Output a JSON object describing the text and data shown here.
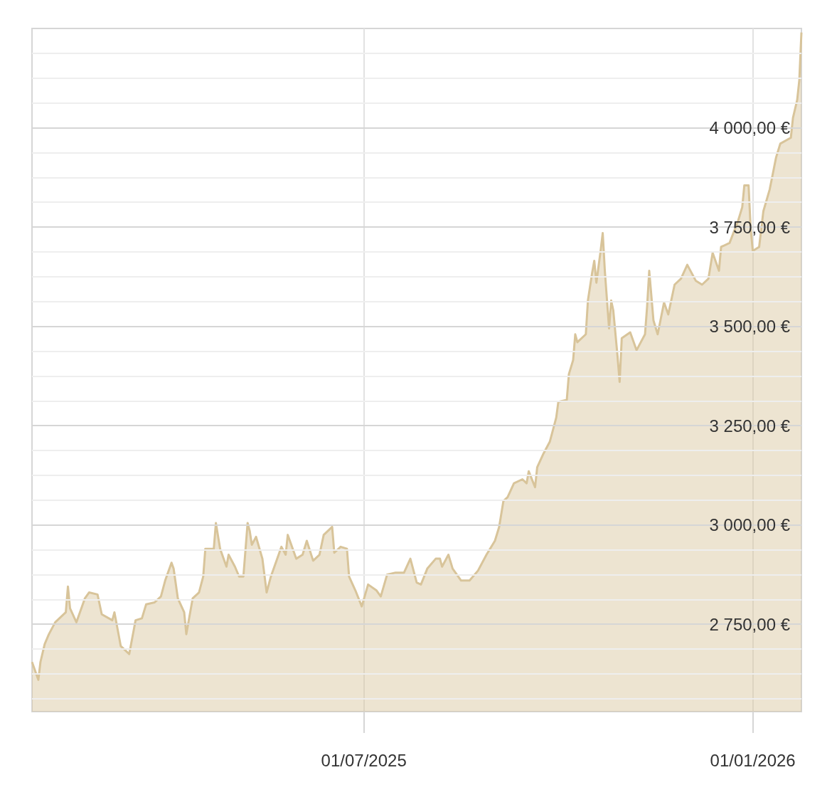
{
  "chart_data": {
    "type": "area",
    "color": "#d8c49a",
    "x": [
      "2025-01-25",
      "2025-01-28",
      "2025-01-29",
      "2025-01-31",
      "2025-02-02",
      "2025-02-05",
      "2025-02-10",
      "2025-02-11",
      "2025-02-12",
      "2025-02-15",
      "2025-02-19",
      "2025-02-21",
      "2025-02-25",
      "2025-02-27",
      "2025-03-04",
      "2025-03-05",
      "2025-03-08",
      "2025-03-12",
      "2025-03-15",
      "2025-03-18",
      "2025-03-20",
      "2025-03-24",
      "2025-03-27",
      "2025-03-29",
      "2025-04-01",
      "2025-04-02",
      "2025-04-04",
      "2025-04-07",
      "2025-04-08",
      "2025-04-09",
      "2025-04-11",
      "2025-04-14",
      "2025-04-16",
      "2025-04-17",
      "2025-04-21",
      "2025-04-22",
      "2025-04-24",
      "2025-04-27",
      "2025-04-28",
      "2025-05-01",
      "2025-05-03",
      "2025-05-05",
      "2025-05-07",
      "2025-05-08",
      "2025-05-09",
      "2025-05-11",
      "2025-05-14",
      "2025-05-16",
      "2025-05-18",
      "2025-05-22",
      "2025-05-23",
      "2025-05-25",
      "2025-05-26",
      "2025-05-30",
      "2025-06-02",
      "2025-06-04",
      "2025-06-07",
      "2025-06-10",
      "2025-06-12",
      "2025-06-16",
      "2025-06-17",
      "2025-06-20",
      "2025-06-23",
      "2025-06-24",
      "2025-06-27",
      "2025-06-30",
      "2025-07-03",
      "2025-07-07",
      "2025-07-09",
      "2025-07-12",
      "2025-07-16",
      "2025-07-20",
      "2025-07-23",
      "2025-07-26",
      "2025-07-28",
      "2025-07-31",
      "2025-08-04",
      "2025-08-06",
      "2025-08-07",
      "2025-08-10",
      "2025-08-12",
      "2025-08-16",
      "2025-08-20",
      "2025-08-24",
      "2025-08-28",
      "2025-09-01",
      "2025-09-03",
      "2025-09-05",
      "2025-09-07",
      "2025-09-10",
      "2025-09-14",
      "2025-09-16",
      "2025-09-17",
      "2025-09-20",
      "2025-09-21",
      "2025-09-24",
      "2025-09-27",
      "2025-09-30",
      "2025-10-01",
      "2025-10-05",
      "2025-10-06",
      "2025-10-08",
      "2025-10-09",
      "2025-10-10",
      "2025-10-14",
      "2025-10-15",
      "2025-10-17",
      "2025-10-18",
      "2025-10-19",
      "2025-10-21",
      "2025-10-22",
      "2025-10-23",
      "2025-10-25",
      "2025-10-26",
      "2025-10-27",
      "2025-10-29",
      "2025-10-30",
      "2025-10-31",
      "2025-11-04",
      "2025-11-07",
      "2025-11-11",
      "2025-11-12",
      "2025-11-13",
      "2025-11-15",
      "2025-11-17",
      "2025-11-20",
      "2025-11-22",
      "2025-11-25",
      "2025-11-28",
      "2025-12-01",
      "2025-12-05",
      "2025-12-08",
      "2025-12-11",
      "2025-12-13",
      "2025-12-16",
      "2025-12-17",
      "2025-12-21",
      "2025-12-25",
      "2025-12-27",
      "2025-12-28",
      "2025-12-30",
      "2025-12-31",
      "2026-01-01",
      "2026-01-04",
      "2026-01-06",
      "2026-01-09",
      "2026-01-12",
      "2026-01-14",
      "2026-01-19",
      "2026-01-20",
      "2026-01-22",
      "2026-01-23",
      "2026-01-24"
    ],
    "values": [
      2655,
      2610,
      2655,
      2700,
      2725,
      2755,
      2780,
      2845,
      2790,
      2755,
      2815,
      2830,
      2825,
      2775,
      2760,
      2780,
      2695,
      2675,
      2760,
      2765,
      2800,
      2805,
      2820,
      2860,
      2905,
      2890,
      2815,
      2780,
      2725,
      2755,
      2815,
      2830,
      2870,
      2940,
      2940,
      3005,
      2940,
      2895,
      2925,
      2895,
      2870,
      2870,
      3005,
      2985,
      2950,
      2970,
      2915,
      2830,
      2870,
      2930,
      2945,
      2925,
      2975,
      2915,
      2925,
      2960,
      2910,
      2925,
      2975,
      2995,
      2930,
      2945,
      2940,
      2870,
      2835,
      2795,
      2850,
      2835,
      2820,
      2875,
      2880,
      2880,
      2915,
      2855,
      2850,
      2890,
      2915,
      2915,
      2895,
      2925,
      2890,
      2860,
      2860,
      2885,
      2925,
      2960,
      2995,
      3060,
      3070,
      3105,
      3115,
      3105,
      3135,
      3095,
      3145,
      3180,
      3210,
      3270,
      3310,
      3315,
      3380,
      3415,
      3480,
      3460,
      3480,
      3565,
      3635,
      3665,
      3610,
      3690,
      3735,
      3640,
      3495,
      3565,
      3540,
      3425,
      3360,
      3470,
      3485,
      3440,
      3480,
      3550,
      3640,
      3515,
      3480,
      3560,
      3530,
      3605,
      3620,
      3655,
      3615,
      3605,
      3620,
      3685,
      3640,
      3700,
      3710,
      3765,
      3800,
      3855,
      3855,
      3745,
      3690,
      3700,
      3790,
      3845,
      3925,
      3960,
      3975,
      4025,
      4070,
      4120,
      4240
    ],
    "xlim": [
      "2025-01-25",
      "2026-01-24"
    ],
    "xticks": [
      {
        "value": "2025-07-01",
        "label": "01/07/2025"
      },
      {
        "value": "2026-01-01",
        "label": "01/01/2026"
      }
    ],
    "ylim": [
      2530,
      4250
    ],
    "yticks": [
      {
        "value": 2562.5,
        "label": null
      },
      {
        "value": 2625,
        "label": null
      },
      {
        "value": 2687.5,
        "label": null
      },
      {
        "value": 2750,
        "label": "2 750,00 €"
      },
      {
        "value": 2812.5,
        "label": null
      },
      {
        "value": 2875,
        "label": null
      },
      {
        "value": 2937.5,
        "label": null
      },
      {
        "value": 3000,
        "label": "3 000,00 €"
      },
      {
        "value": 3062.5,
        "label": null
      },
      {
        "value": 3125,
        "label": null
      },
      {
        "value": 3187.5,
        "label": null
      },
      {
        "value": 3250,
        "label": "3 250,00 €"
      },
      {
        "value": 3312.5,
        "label": null
      },
      {
        "value": 3375,
        "label": null
      },
      {
        "value": 3437.5,
        "label": null
      },
      {
        "value": 3500,
        "label": "3 500,00 €"
      },
      {
        "value": 3562.5,
        "label": null
      },
      {
        "value": 3625,
        "label": null
      },
      {
        "value": 3687.5,
        "label": null
      },
      {
        "value": 3750,
        "label": "3 750,00 €"
      },
      {
        "value": 3812.5,
        "label": null
      },
      {
        "value": 3875,
        "label": null
      },
      {
        "value": 3937.5,
        "label": null
      },
      {
        "value": 4000,
        "label": "4 000,00 €"
      },
      {
        "value": 4062.5,
        "label": null
      },
      {
        "value": 4125,
        "label": null
      },
      {
        "value": 4187.5,
        "label": null
      }
    ],
    "grid": true
  }
}
